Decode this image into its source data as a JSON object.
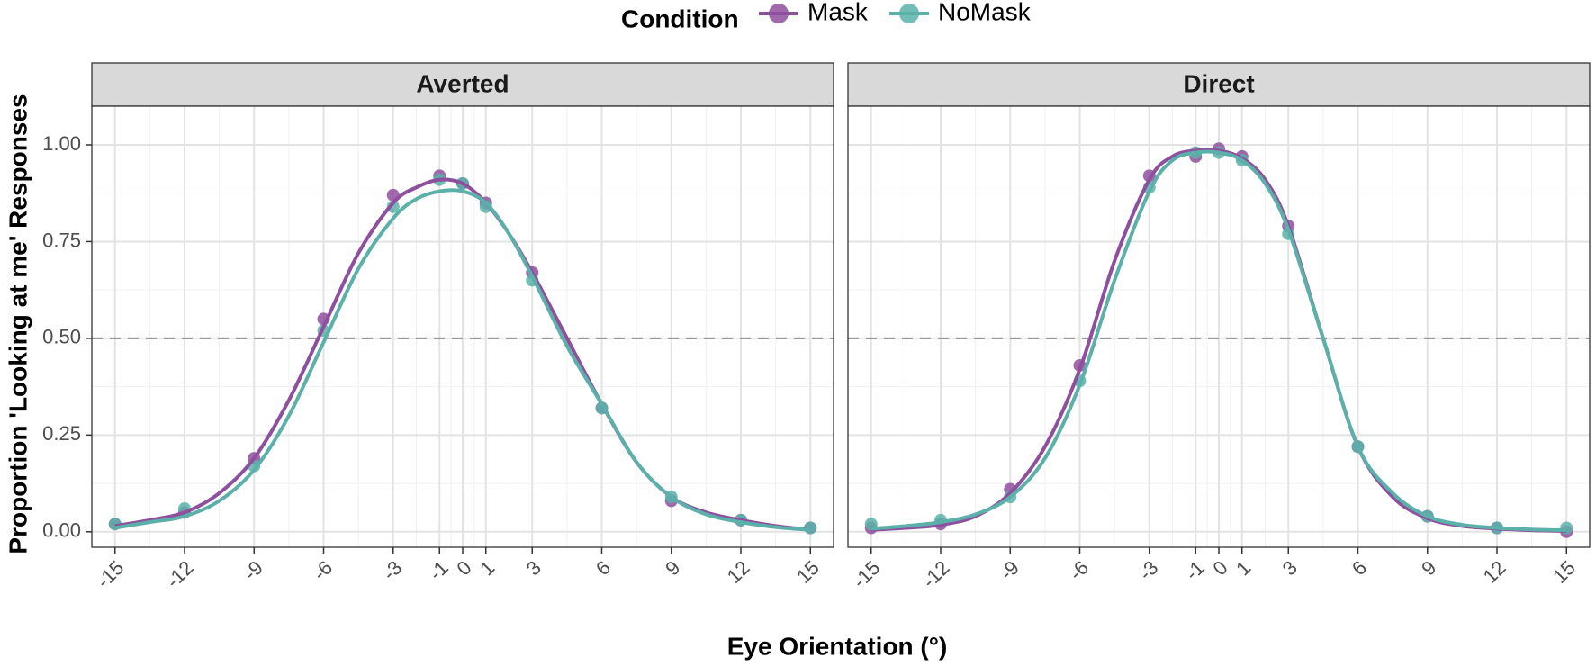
{
  "chart_data": {
    "type": "line",
    "xlabel": "Eye Orientation (°)",
    "ylabel": "Proportion 'Looking at me' Responses",
    "legend": {
      "title": "Condition",
      "position": "top"
    },
    "x_ticks": [
      -15,
      -12,
      -9,
      -6,
      -3,
      -1,
      0,
      1,
      3,
      6,
      9,
      12,
      15
    ],
    "y_ticks": [
      0.0,
      0.25,
      0.5,
      0.75,
      1.0
    ],
    "y_tick_labels": [
      "0.00",
      "0.25",
      "0.50",
      "0.75",
      "1.00"
    ],
    "xlim": [
      -16,
      16
    ],
    "ylim": [
      -0.04,
      1.1
    ],
    "reference_line_y": 0.5,
    "grid": true,
    "colors": {
      "Mask": "#8e4f9e",
      "NoMask": "#5bb1aa"
    },
    "panels": [
      {
        "title": "Averted",
        "series": [
          {
            "name": "Mask",
            "points": [
              [
                -15,
                0.02
              ],
              [
                -12,
                0.05
              ],
              [
                -9,
                0.19
              ],
              [
                -6,
                0.55
              ],
              [
                -3,
                0.87
              ],
              [
                -1,
                0.92
              ],
              [
                0,
                0.9
              ],
              [
                1,
                0.85
              ],
              [
                3,
                0.67
              ],
              [
                6,
                0.32
              ],
              [
                9,
                0.08
              ],
              [
                12,
                0.03
              ],
              [
                15,
                0.01
              ]
            ],
            "curve": [
              [
                -15,
                0.015
              ],
              [
                -13.5,
                0.03
              ],
              [
                -12,
                0.05
              ],
              [
                -10.5,
                0.1
              ],
              [
                -9,
                0.19
              ],
              [
                -7.5,
                0.34
              ],
              [
                -6,
                0.53
              ],
              [
                -4.5,
                0.72
              ],
              [
                -3,
                0.85
              ],
              [
                -2,
                0.89
              ],
              [
                -1,
                0.91
              ],
              [
                0,
                0.9
              ],
              [
                1,
                0.85
              ],
              [
                2,
                0.77
              ],
              [
                3,
                0.67
              ],
              [
                4.5,
                0.5
              ],
              [
                6,
                0.33
              ],
              [
                7.5,
                0.18
              ],
              [
                9,
                0.09
              ],
              [
                10.5,
                0.05
              ],
              [
                12,
                0.03
              ],
              [
                13.5,
                0.015
              ],
              [
                15,
                0.005
              ]
            ]
          },
          {
            "name": "NoMask",
            "points": [
              [
                -15,
                0.02
              ],
              [
                -12,
                0.06
              ],
              [
                -9,
                0.17
              ],
              [
                -6,
                0.52
              ],
              [
                -3,
                0.84
              ],
              [
                -1,
                0.91
              ],
              [
                0,
                0.9
              ],
              [
                1,
                0.84
              ],
              [
                3,
                0.65
              ],
              [
                6,
                0.32
              ],
              [
                9,
                0.09
              ],
              [
                12,
                0.03
              ],
              [
                15,
                0.01
              ]
            ],
            "curve": [
              [
                -15,
                0.01
              ],
              [
                -13.5,
                0.025
              ],
              [
                -12,
                0.04
              ],
              [
                -10.5,
                0.08
              ],
              [
                -9,
                0.16
              ],
              [
                -7.5,
                0.3
              ],
              [
                -6,
                0.49
              ],
              [
                -4.5,
                0.68
              ],
              [
                -3,
                0.81
              ],
              [
                -2,
                0.86
              ],
              [
                -1,
                0.88
              ],
              [
                0,
                0.88
              ],
              [
                1,
                0.85
              ],
              [
                2,
                0.77
              ],
              [
                3,
                0.66
              ],
              [
                4.5,
                0.48
              ],
              [
                6,
                0.33
              ],
              [
                7.5,
                0.18
              ],
              [
                9,
                0.09
              ],
              [
                10.5,
                0.045
              ],
              [
                12,
                0.025
              ],
              [
                13.5,
                0.012
              ],
              [
                15,
                0.005
              ]
            ]
          }
        ]
      },
      {
        "title": "Direct",
        "series": [
          {
            "name": "Mask",
            "points": [
              [
                -15,
                0.01
              ],
              [
                -12,
                0.02
              ],
              [
                -9,
                0.11
              ],
              [
                -6,
                0.43
              ],
              [
                -3,
                0.92
              ],
              [
                -1,
                0.97
              ],
              [
                0,
                0.99
              ],
              [
                1,
                0.97
              ],
              [
                3,
                0.79
              ],
              [
                6,
                0.22
              ],
              [
                9,
                0.04
              ],
              [
                12,
                0.01
              ],
              [
                15,
                0.0
              ]
            ],
            "curve": [
              [
                -15,
                0.005
              ],
              [
                -13.5,
                0.01
              ],
              [
                -12,
                0.018
              ],
              [
                -10.5,
                0.04
              ],
              [
                -9,
                0.1
              ],
              [
                -7.5,
                0.22
              ],
              [
                -6,
                0.42
              ],
              [
                -4.5,
                0.7
              ],
              [
                -3,
                0.91
              ],
              [
                -2,
                0.97
              ],
              [
                -1,
                0.985
              ],
              [
                0,
                0.985
              ],
              [
                1,
                0.965
              ],
              [
                2,
                0.91
              ],
              [
                3,
                0.79
              ],
              [
                4.5,
                0.5
              ],
              [
                6,
                0.22
              ],
              [
                7.5,
                0.09
              ],
              [
                9,
                0.035
              ],
              [
                10.5,
                0.015
              ],
              [
                12,
                0.008
              ],
              [
                13.5,
                0.004
              ],
              [
                15,
                0.002
              ]
            ]
          },
          {
            "name": "NoMask",
            "points": [
              [
                -15,
                0.02
              ],
              [
                -12,
                0.03
              ],
              [
                -9,
                0.09
              ],
              [
                -6,
                0.39
              ],
              [
                -3,
                0.89
              ],
              [
                -1,
                0.98
              ],
              [
                0,
                0.98
              ],
              [
                1,
                0.96
              ],
              [
                3,
                0.77
              ],
              [
                6,
                0.22
              ],
              [
                9,
                0.04
              ],
              [
                12,
                0.01
              ],
              [
                15,
                0.01
              ]
            ],
            "curve": [
              [
                -15,
                0.008
              ],
              [
                -13.5,
                0.015
              ],
              [
                -12,
                0.025
              ],
              [
                -10.5,
                0.045
              ],
              [
                -9,
                0.09
              ],
              [
                -7.5,
                0.19
              ],
              [
                -6,
                0.38
              ],
              [
                -4.5,
                0.65
              ],
              [
                -3,
                0.88
              ],
              [
                -2,
                0.96
              ],
              [
                -1,
                0.98
              ],
              [
                0,
                0.98
              ],
              [
                1,
                0.96
              ],
              [
                2,
                0.9
              ],
              [
                3,
                0.78
              ],
              [
                4.5,
                0.5
              ],
              [
                6,
                0.22
              ],
              [
                7.5,
                0.1
              ],
              [
                9,
                0.04
              ],
              [
                10.5,
                0.018
              ],
              [
                12,
                0.01
              ],
              [
                13.5,
                0.006
              ],
              [
                15,
                0.004
              ]
            ]
          }
        ]
      }
    ]
  }
}
